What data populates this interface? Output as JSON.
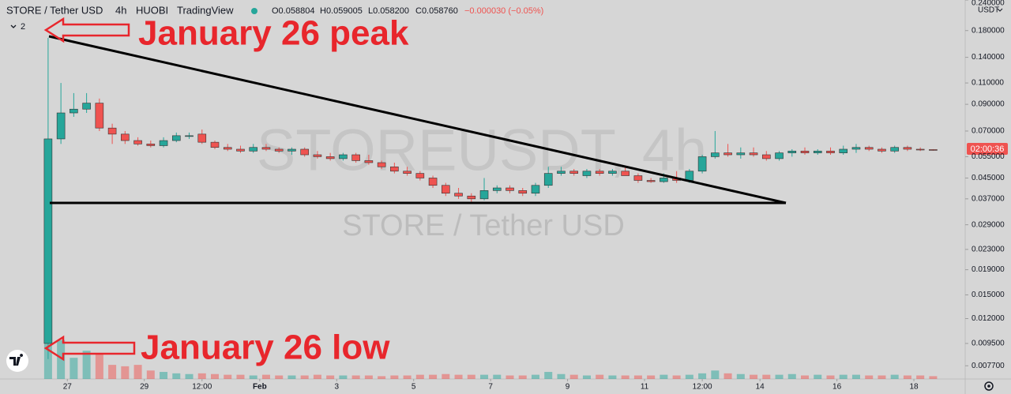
{
  "header": {
    "symbol": "STORE / Tether USD",
    "interval": "4h",
    "exchange": "HUOBI",
    "source": "TradingView",
    "ohlc": [
      "O0.058804",
      "H0.059005",
      "L0.058200",
      "C0.058760"
    ],
    "change": "−0.000030 (−0.05%)",
    "indicator_count": "2"
  },
  "watermark": {
    "ticker": "STOREUSDT, 4h",
    "name": "STORE / Tether USD"
  },
  "annotations": {
    "peak": "January 26 peak",
    "low": "January 26 low"
  },
  "price_axis": {
    "currency": "USDT",
    "countdown": "02:00:36"
  },
  "chart_data": {
    "type": "candlestick",
    "log_scale": true,
    "grid": false,
    "up_color": "#26a69a",
    "down_color": "#ef5350",
    "xlim": [
      -18,
      584
    ],
    "ylim": [
      0.0068,
      0.24
    ],
    "xticks": [
      {
        "value": 24,
        "label": "27"
      },
      {
        "value": 72,
        "label": "29"
      },
      {
        "value": 108,
        "label": "12:00"
      },
      {
        "value": 144,
        "label": "Feb"
      },
      {
        "value": 192,
        "label": "3"
      },
      {
        "value": 240,
        "label": "5"
      },
      {
        "value": 288,
        "label": "7"
      },
      {
        "value": 336,
        "label": "9"
      },
      {
        "value": 384,
        "label": "11"
      },
      {
        "value": 420,
        "label": "12:00"
      },
      {
        "value": 456,
        "label": "14"
      },
      {
        "value": 504,
        "label": "16"
      },
      {
        "value": 552,
        "label": "18"
      }
    ],
    "yticks": [
      {
        "value": 0.24,
        "label": "0.240000"
      },
      {
        "value": 0.18,
        "label": "0.180000"
      },
      {
        "value": 0.14,
        "label": "0.140000"
      },
      {
        "value": 0.11,
        "label": "0.110000"
      },
      {
        "value": 0.09,
        "label": "0.090000"
      },
      {
        "value": 0.07,
        "label": "0.070000"
      },
      {
        "value": 0.055,
        "label": "0.055000"
      },
      {
        "value": 0.045,
        "label": "0.045000"
      },
      {
        "value": 0.037,
        "label": "0.037000"
      },
      {
        "value": 0.029,
        "label": "0.029000"
      },
      {
        "value": 0.023,
        "label": "0.023000"
      },
      {
        "value": 0.019,
        "label": "0.019000"
      },
      {
        "value": 0.015,
        "label": "0.015000"
      },
      {
        "value": 0.012,
        "label": "0.012000"
      },
      {
        "value": 0.0095,
        "label": "0.009500"
      },
      {
        "value": 0.0077,
        "label": "0.007700"
      }
    ],
    "x": [
      12,
      20,
      28,
      36,
      44,
      52,
      60,
      68,
      76,
      84,
      92,
      100,
      108,
      116,
      124,
      132,
      140,
      148,
      156,
      164,
      172,
      180,
      188,
      196,
      204,
      212,
      220,
      228,
      236,
      244,
      252,
      260,
      268,
      276,
      284,
      292,
      300,
      308,
      316,
      324,
      332,
      340,
      348,
      356,
      364,
      372,
      380,
      388,
      396,
      404,
      412,
      420,
      428,
      436,
      444,
      452,
      460,
      468,
      476,
      484,
      492,
      500,
      508,
      516,
      524,
      532,
      540,
      548,
      556,
      564
    ],
    "open": [
      0.0095,
      0.065,
      0.083,
      0.086,
      0.091,
      0.072,
      0.068,
      0.064,
      0.062,
      0.061,
      0.064,
      0.067,
      0.068,
      0.063,
      0.06,
      0.059,
      0.058,
      0.06,
      0.059,
      0.058,
      0.059,
      0.056,
      0.055,
      0.054,
      0.056,
      0.053,
      0.052,
      0.05,
      0.048,
      0.047,
      0.045,
      0.042,
      0.039,
      0.038,
      0.037,
      0.04,
      0.041,
      0.04,
      0.039,
      0.042,
      0.047,
      0.048,
      0.046,
      0.048,
      0.047,
      0.048,
      0.046,
      0.044,
      0.0435,
      0.045,
      0.044,
      0.048,
      0.055,
      0.057,
      0.056,
      0.057,
      0.056,
      0.054,
      0.057,
      0.058,
      0.057,
      0.058,
      0.057,
      0.059,
      0.06,
      0.059,
      0.058,
      0.06,
      0.059,
      0.058804
    ],
    "high": [
      0.168,
      0.11,
      0.1,
      0.1,
      0.095,
      0.075,
      0.07,
      0.066,
      0.064,
      0.066,
      0.069,
      0.069,
      0.071,
      0.064,
      0.062,
      0.061,
      0.062,
      0.062,
      0.06,
      0.06,
      0.06,
      0.058,
      0.057,
      0.057,
      0.057,
      0.056,
      0.053,
      0.052,
      0.05,
      0.048,
      0.046,
      0.043,
      0.041,
      0.039,
      0.045,
      0.042,
      0.042,
      0.041,
      0.043,
      0.05,
      0.05,
      0.049,
      0.049,
      0.049,
      0.049,
      0.05,
      0.047,
      0.045,
      0.047,
      0.048,
      0.049,
      0.056,
      0.07,
      0.062,
      0.06,
      0.06,
      0.058,
      0.058,
      0.059,
      0.06,
      0.059,
      0.06,
      0.061,
      0.062,
      0.061,
      0.06,
      0.061,
      0.061,
      0.06,
      0.059005
    ],
    "low": [
      0.0082,
      0.062,
      0.08,
      0.083,
      0.07,
      0.062,
      0.062,
      0.061,
      0.06,
      0.06,
      0.063,
      0.065,
      0.062,
      0.059,
      0.058,
      0.057,
      0.057,
      0.058,
      0.057,
      0.056,
      0.055,
      0.054,
      0.053,
      0.053,
      0.052,
      0.051,
      0.049,
      0.047,
      0.046,
      0.044,
      0.041,
      0.038,
      0.037,
      0.036,
      0.0365,
      0.039,
      0.039,
      0.038,
      0.038,
      0.041,
      0.046,
      0.046,
      0.045,
      0.046,
      0.046,
      0.046,
      0.043,
      0.043,
      0.043,
      0.043,
      0.043,
      0.047,
      0.054,
      0.055,
      0.054,
      0.055,
      0.053,
      0.053,
      0.055,
      0.056,
      0.056,
      0.056,
      0.056,
      0.057,
      0.058,
      0.057,
      0.057,
      0.058,
      0.058,
      0.0582
    ],
    "close": [
      0.065,
      0.083,
      0.086,
      0.091,
      0.072,
      0.068,
      0.064,
      0.062,
      0.061,
      0.064,
      0.067,
      0.067,
      0.063,
      0.06,
      0.059,
      0.058,
      0.06,
      0.059,
      0.058,
      0.059,
      0.056,
      0.055,
      0.054,
      0.056,
      0.053,
      0.052,
      0.05,
      0.048,
      0.047,
      0.045,
      0.042,
      0.039,
      0.038,
      0.037,
      0.04,
      0.041,
      0.04,
      0.039,
      0.042,
      0.047,
      0.048,
      0.047,
      0.048,
      0.047,
      0.048,
      0.046,
      0.044,
      0.0435,
      0.045,
      0.044,
      0.048,
      0.055,
      0.057,
      0.056,
      0.057,
      0.056,
      0.054,
      0.057,
      0.058,
      0.057,
      0.058,
      0.057,
      0.059,
      0.06,
      0.059,
      0.058,
      0.06,
      0.059,
      0.0588,
      0.05876
    ],
    "volume": [
      95,
      55,
      30,
      40,
      35,
      20,
      18,
      20,
      12,
      10,
      8,
      7,
      8,
      7,
      6,
      6,
      5,
      6,
      5,
      5,
      5,
      6,
      5,
      5,
      5,
      5,
      4,
      5,
      5,
      6,
      6,
      7,
      6,
      6,
      6,
      6,
      5,
      5,
      6,
      10,
      7,
      6,
      5,
      6,
      5,
      5,
      5,
      5,
      6,
      5,
      6,
      8,
      12,
      8,
      7,
      6,
      6,
      6,
      7,
      5,
      6,
      5,
      6,
      6,
      5,
      5,
      6,
      5,
      5,
      4
    ]
  }
}
